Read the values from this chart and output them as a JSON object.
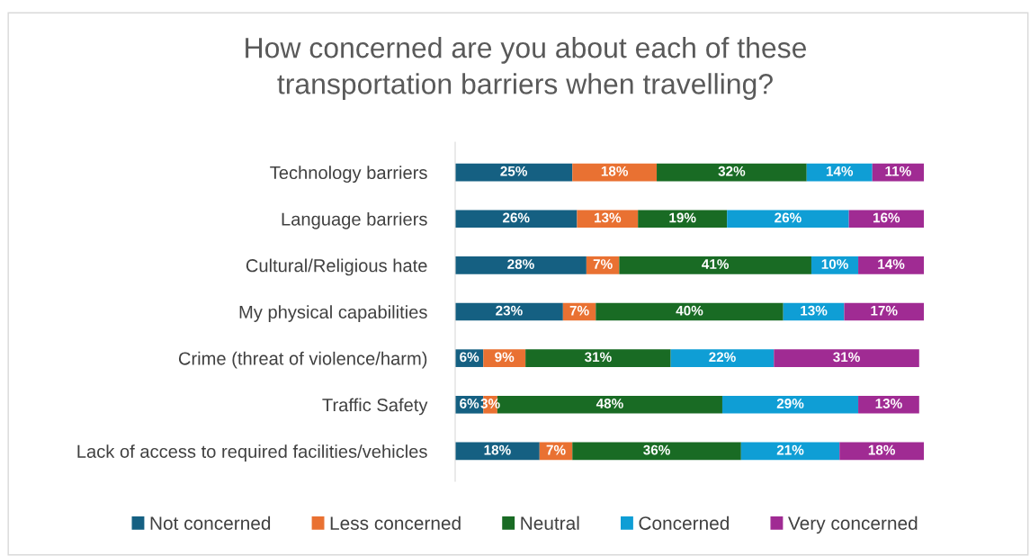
{
  "chart_data": {
    "type": "bar",
    "orientation": "horizontal",
    "stacked": true,
    "tick_labels": "y",
    "legend": "bottom",
    "grid": false,
    "title": "How concerned are you about each of these\ntransportation barriers when travelling?",
    "categories": [
      "Technology barriers",
      "Language barriers",
      "Cultural/Religious hate",
      "My physical capabilities",
      "Crime (threat of violence/harm)",
      "Traffic Safety",
      "Lack of access to required facilities/vehicles"
    ],
    "series": [
      {
        "name": "Not concerned",
        "color": "#156082",
        "values": [
          25,
          26,
          28,
          23,
          6,
          6,
          18
        ],
        "value_labels": [
          "25%",
          "26%",
          "28%",
          "23%",
          "6%",
          "6%",
          "18%"
        ]
      },
      {
        "name": "Less concerned",
        "color": "#e97132",
        "values": [
          18,
          13,
          7,
          7,
          9,
          3,
          7
        ],
        "value_labels": [
          "18%",
          "13%",
          "7%",
          "7%",
          "9%",
          "3%",
          "7%"
        ]
      },
      {
        "name": "Neutral",
        "color": "#196b24",
        "values": [
          32,
          19,
          41,
          40,
          31,
          48,
          36
        ],
        "value_labels": [
          "32%",
          "19%",
          "41%",
          "40%",
          "31%",
          "48%",
          "36%"
        ]
      },
      {
        "name": "Concerned",
        "color": "#0f9ed5",
        "values": [
          14,
          26,
          10,
          13,
          22,
          29,
          21
        ],
        "value_labels": [
          "14%",
          "26%",
          "10%",
          "13%",
          "22%",
          "29%",
          "21%"
        ]
      },
      {
        "name": "Very concerned",
        "color": "#a02b93",
        "values": [
          11,
          16,
          14,
          17,
          31,
          13,
          18
        ],
        "value_labels": [
          "11%",
          "16%",
          "14%",
          "17%",
          "31%",
          "13%",
          "18%"
        ]
      }
    ]
  }
}
